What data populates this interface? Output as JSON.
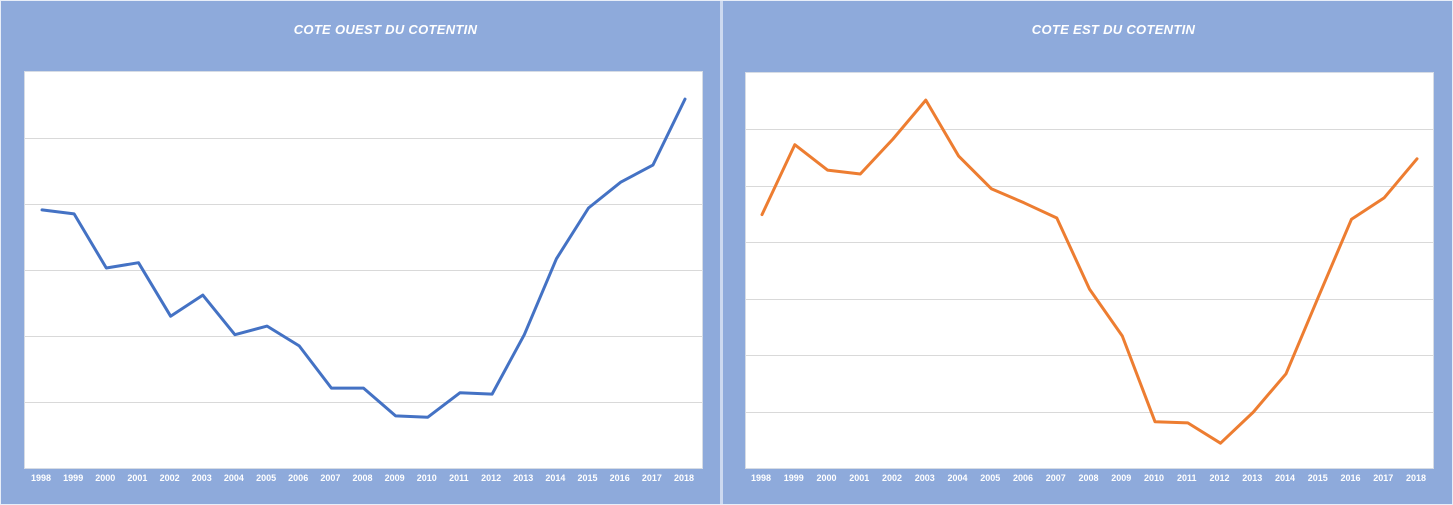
{
  "colors": {
    "background": "#8EAADB",
    "gridline": "#D9D9D9",
    "plot_border": "#D6DCE5",
    "title_text": "#FFFFFF",
    "axis_label_text": "#FFFFFF",
    "west_line": "#4472C4",
    "east_line": "#ED7D31"
  },
  "chart_data": [
    {
      "type": "line",
      "title": "COTE OUEST DU COTENTIN",
      "x": [
        "1998",
        "1999",
        "2000",
        "2001",
        "2002",
        "2003",
        "2004",
        "2005",
        "2006",
        "2007",
        "2008",
        "2009",
        "2010",
        "2011",
        "2012",
        "2013",
        "2014",
        "2015",
        "2016",
        "2017",
        "2018"
      ],
      "values": [
        3.91,
        3.85,
        3.03,
        3.11,
        2.3,
        2.62,
        2.02,
        2.15,
        1.85,
        1.21,
        1.21,
        0.79,
        0.77,
        1.14,
        1.12,
        2.02,
        3.17,
        3.94,
        4.33,
        4.59,
        5.59
      ],
      "xlabel": "",
      "ylabel": "",
      "ylim": [
        0,
        6
      ],
      "y_tick_labels_visible": false,
      "grid": true,
      "legend": "none",
      "line_color": "#4472C4",
      "note": "y-axis has no visible labels; values estimated in horizontal-gridline units (6 intervals between plot top and bottom)"
    },
    {
      "type": "line",
      "title": "COTE EST DU COTENTIN",
      "x": [
        "1998",
        "1999",
        "2000",
        "2001",
        "2002",
        "2003",
        "2004",
        "2005",
        "2006",
        "2007",
        "2008",
        "2009",
        "2010",
        "2011",
        "2012",
        "2013",
        "2014",
        "2015",
        "2016",
        "2017",
        "2018"
      ],
      "values": [
        4.49,
        5.73,
        5.28,
        5.21,
        5.83,
        6.52,
        5.53,
        4.95,
        4.7,
        4.43,
        3.17,
        2.34,
        0.82,
        0.8,
        0.44,
        0.99,
        1.67,
        3.05,
        4.41,
        4.79,
        5.48
      ],
      "xlabel": "",
      "ylabel": "",
      "ylim": [
        0,
        7
      ],
      "y_tick_labels_visible": false,
      "grid": true,
      "legend": "none",
      "line_color": "#ED7D31",
      "note": "y-axis has no visible labels; values estimated in horizontal-gridline units (7 intervals between plot top and bottom)"
    }
  ]
}
